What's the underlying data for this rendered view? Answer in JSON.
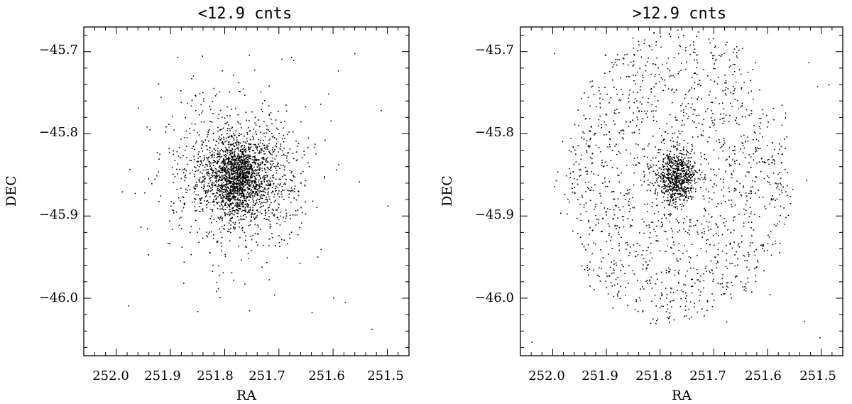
{
  "chart_data": [
    {
      "type": "scatter",
      "title": "<12.9 cnts",
      "xlabel": "RA",
      "ylabel": "DEC",
      "xlim": [
        252.06,
        251.46
      ],
      "ylim": [
        -46.07,
        -45.67
      ],
      "x_ticks": [
        252.0,
        251.9,
        251.8,
        251.7,
        251.6,
        251.5
      ],
      "x_tick_labels": [
        "252.0",
        "251.9",
        "251.8",
        "251.7",
        "251.6",
        "251.5"
      ],
      "y_ticks": [
        -45.7,
        -45.8,
        -45.9,
        -46.0
      ],
      "y_tick_labels": [
        "−45.7",
        "−45.8",
        "−45.9",
        "−46.0"
      ],
      "x_axis_reversed": true,
      "grid": false,
      "marker_color": "#000000",
      "distribution": {
        "center": [
          251.775,
          -45.852
        ],
        "core_points": 1200,
        "core_sigma": [
          0.025,
          0.022
        ],
        "halo_points": 1300,
        "halo_sigma": [
          0.062,
          0.042
        ],
        "outlier_points": 40,
        "outlier_ra_range": [
          251.98,
          251.48
        ],
        "outlier_dec_range": [
          -46.04,
          -45.69
        ]
      }
    },
    {
      "type": "scatter",
      "title": ">12.9 cnts",
      "xlabel": "RA",
      "ylabel": "DEC",
      "xlim": [
        252.06,
        251.46
      ],
      "ylim": [
        -46.07,
        -45.67
      ],
      "x_ticks": [
        252.0,
        251.9,
        251.8,
        251.7,
        251.6,
        251.5
      ],
      "x_tick_labels": [
        "252.0",
        "251.9",
        "251.8",
        "251.7",
        "251.6",
        "251.5"
      ],
      "y_ticks": [
        -45.7,
        -45.8,
        -45.9,
        -46.0
      ],
      "y_tick_labels": [
        "−45.7",
        "−45.8",
        "−45.9",
        "−46.0"
      ],
      "x_axis_reversed": true,
      "grid": false,
      "marker_color": "#000000",
      "distribution": {
        "center": [
          251.77,
          -45.852
        ],
        "core_points": 700,
        "core_sigma": [
          0.018,
          0.016
        ],
        "halo_points": 1500,
        "halo_radius": [
          0.23,
          0.19
        ],
        "outlier_points": 25,
        "outlier_ra_range": [
          252.04,
          251.48
        ],
        "outlier_dec_range": [
          -46.06,
          -45.68
        ]
      }
    }
  ]
}
